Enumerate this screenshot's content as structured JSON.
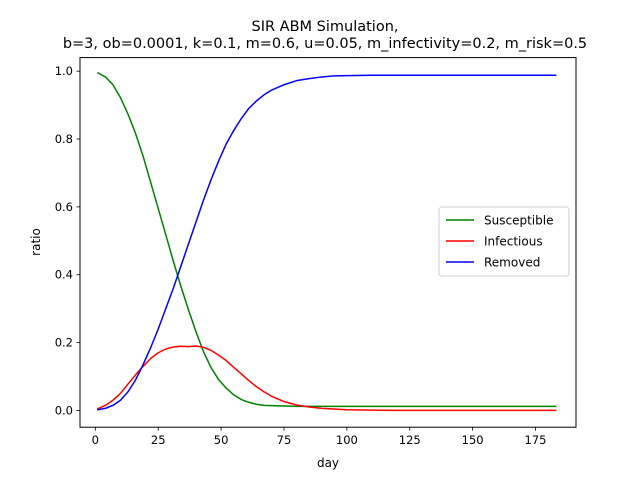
{
  "chart_data": {
    "type": "line",
    "title": "SIR ABM Simulation,",
    "subtitle": "b=3, ob=0.0001, k=0.1, m=0.6, u=0.05, m_infectivity=0.2, m_risk=0.5",
    "xlabel": "day",
    "ylabel": "ratio",
    "xlim": [
      -6.1,
      191.1
    ],
    "ylim": [
      -0.0495,
      1.04
    ],
    "xticks": [
      0,
      25,
      50,
      75,
      100,
      125,
      150,
      175
    ],
    "yticks": [
      0.0,
      0.2,
      0.4,
      0.6,
      0.8,
      1.0
    ],
    "xtick_labels": [
      "0",
      "25",
      "50",
      "75",
      "100",
      "125",
      "150",
      "175"
    ],
    "ytick_labels": [
      "0.0",
      "0.2",
      "0.4",
      "0.6",
      "0.8",
      "1.0"
    ],
    "grid": false,
    "legend_position": "center-right",
    "series": [
      {
        "name": "Susceptible",
        "color": "#008000",
        "x": [
          1,
          4,
          7,
          10,
          13,
          16,
          19,
          22,
          25,
          28,
          31,
          34,
          37,
          40,
          43,
          46,
          49,
          52,
          55,
          58,
          61,
          64,
          67,
          70,
          75,
          80,
          85,
          90,
          100,
          110,
          120,
          140,
          160,
          183
        ],
        "y": [
          0.995,
          0.983,
          0.96,
          0.922,
          0.873,
          0.816,
          0.749,
          0.672,
          0.595,
          0.518,
          0.44,
          0.366,
          0.297,
          0.232,
          0.173,
          0.126,
          0.091,
          0.066,
          0.046,
          0.032,
          0.024,
          0.018,
          0.015,
          0.014,
          0.013,
          0.012,
          0.012,
          0.012,
          0.012,
          0.012,
          0.012,
          0.012,
          0.012,
          0.012
        ]
      },
      {
        "name": "Infectious",
        "color": "#ff0000",
        "x": [
          1,
          4,
          7,
          10,
          13,
          16,
          19,
          22,
          25,
          28,
          31,
          34,
          37,
          40,
          43,
          46,
          49,
          52,
          55,
          58,
          61,
          64,
          67,
          70,
          75,
          80,
          85,
          90,
          95,
          100,
          110,
          120,
          140,
          160,
          183
        ],
        "y": [
          0.005,
          0.015,
          0.03,
          0.05,
          0.078,
          0.105,
          0.13,
          0.153,
          0.17,
          0.181,
          0.187,
          0.189,
          0.188,
          0.19,
          0.186,
          0.177,
          0.163,
          0.147,
          0.127,
          0.108,
          0.088,
          0.07,
          0.055,
          0.042,
          0.026,
          0.016,
          0.01,
          0.006,
          0.004,
          0.002,
          0.001,
          0.0,
          0.0,
          0.0,
          0.0
        ]
      },
      {
        "name": "Removed",
        "color": "#0000ff",
        "x": [
          1,
          4,
          7,
          10,
          13,
          16,
          19,
          22,
          25,
          28,
          31,
          34,
          37,
          40,
          43,
          46,
          49,
          52,
          55,
          58,
          61,
          64,
          67,
          70,
          75,
          80,
          85,
          90,
          95,
          100,
          110,
          120,
          140,
          160,
          183
        ],
        "y": [
          0.002,
          0.006,
          0.015,
          0.03,
          0.055,
          0.09,
          0.135,
          0.185,
          0.24,
          0.3,
          0.36,
          0.425,
          0.49,
          0.555,
          0.62,
          0.68,
          0.735,
          0.785,
          0.825,
          0.86,
          0.89,
          0.912,
          0.93,
          0.944,
          0.96,
          0.972,
          0.978,
          0.983,
          0.986,
          0.987,
          0.988,
          0.988,
          0.988,
          0.988,
          0.988
        ]
      }
    ]
  }
}
